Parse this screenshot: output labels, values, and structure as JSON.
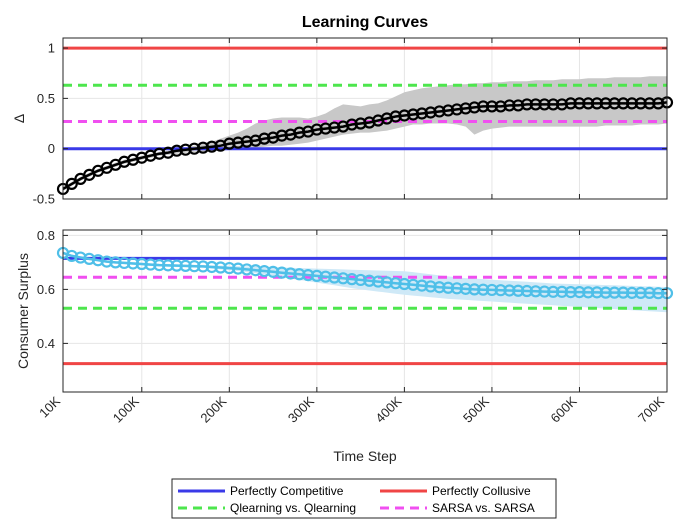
{
  "chart_data": {
    "type": "line",
    "title": "Learning Curves",
    "xlabel": "Time Step",
    "x_ticks": [
      "10K",
      "100K",
      "200K",
      "300K",
      "400K",
      "500K",
      "600K",
      "700K"
    ],
    "x_tick_values": [
      10000,
      100000,
      200000,
      300000,
      400000,
      500000,
      600000,
      700000
    ],
    "xlim": [
      10000,
      700000
    ],
    "grid": true,
    "panels": [
      {
        "ylabel": "Δ",
        "ylim": [
          -0.5,
          1.1
        ],
        "y_ticks": [
          -0.5,
          0,
          0.5,
          1
        ],
        "y_tick_labels": [
          "-0.5",
          "0",
          "0.5",
          "1"
        ],
        "reference_lines": [
          {
            "name": "Perfectly Competitive",
            "value": 0,
            "color": "#3a3ae8",
            "style": "solid"
          },
          {
            "name": "Perfectly Collusive",
            "value": 1,
            "color": "#f04545",
            "style": "solid"
          },
          {
            "name": "Qlearning vs. Qlearning",
            "value": 0.63,
            "color": "#4de64d",
            "style": "dashed"
          },
          {
            "name": "SARSA vs. SARSA",
            "value": 0.27,
            "color": "#f04ff0",
            "style": "dashed"
          }
        ],
        "series": {
          "marker_color": "#000000",
          "band_color": "#c8c8c8",
          "x": [
            10000,
            20000,
            30000,
            40000,
            50000,
            60000,
            70000,
            80000,
            90000,
            100000,
            110000,
            120000,
            130000,
            140000,
            150000,
            160000,
            170000,
            180000,
            190000,
            200000,
            210000,
            220000,
            230000,
            240000,
            250000,
            260000,
            270000,
            280000,
            290000,
            300000,
            310000,
            320000,
            330000,
            340000,
            350000,
            360000,
            370000,
            380000,
            390000,
            400000,
            410000,
            420000,
            430000,
            440000,
            450000,
            460000,
            470000,
            480000,
            490000,
            500000,
            510000,
            520000,
            530000,
            540000,
            550000,
            560000,
            570000,
            580000,
            590000,
            600000,
            610000,
            620000,
            630000,
            640000,
            650000,
            660000,
            670000,
            680000,
            690000,
            700000
          ],
          "values": [
            -0.4,
            -0.35,
            -0.3,
            -0.26,
            -0.22,
            -0.19,
            -0.16,
            -0.13,
            -0.11,
            -0.09,
            -0.07,
            -0.05,
            -0.04,
            -0.02,
            -0.01,
            0.0,
            0.01,
            0.02,
            0.03,
            0.05,
            0.06,
            0.07,
            0.08,
            0.1,
            0.11,
            0.13,
            0.14,
            0.16,
            0.17,
            0.19,
            0.2,
            0.21,
            0.22,
            0.24,
            0.25,
            0.26,
            0.28,
            0.3,
            0.32,
            0.33,
            0.34,
            0.35,
            0.36,
            0.37,
            0.38,
            0.39,
            0.4,
            0.41,
            0.42,
            0.42,
            0.42,
            0.43,
            0.43,
            0.44,
            0.44,
            0.44,
            0.44,
            0.44,
            0.45,
            0.45,
            0.45,
            0.45,
            0.45,
            0.45,
            0.45,
            0.45,
            0.45,
            0.45,
            0.45,
            0.46
          ],
          "upper": [
            -0.38,
            -0.33,
            -0.28,
            -0.24,
            -0.2,
            -0.17,
            -0.14,
            -0.11,
            -0.09,
            -0.07,
            -0.05,
            -0.03,
            -0.02,
            0.0,
            0.01,
            0.03,
            0.05,
            0.07,
            0.1,
            0.13,
            0.16,
            0.2,
            0.25,
            0.28,
            0.3,
            0.31,
            0.31,
            0.31,
            0.3,
            0.32,
            0.35,
            0.4,
            0.44,
            0.43,
            0.42,
            0.44,
            0.45,
            0.48,
            0.52,
            0.56,
            0.58,
            0.6,
            0.61,
            0.62,
            0.63,
            0.64,
            0.64,
            0.65,
            0.65,
            0.66,
            0.66,
            0.67,
            0.67,
            0.67,
            0.68,
            0.68,
            0.68,
            0.69,
            0.69,
            0.69,
            0.7,
            0.7,
            0.7,
            0.71,
            0.71,
            0.71,
            0.71,
            0.72,
            0.72,
            0.72
          ],
          "lower": [
            -0.42,
            -0.37,
            -0.32,
            -0.28,
            -0.24,
            -0.21,
            -0.18,
            -0.15,
            -0.13,
            -0.11,
            -0.09,
            -0.07,
            -0.06,
            -0.05,
            -0.04,
            -0.03,
            -0.03,
            -0.02,
            -0.02,
            -0.01,
            0.0,
            0.0,
            0.01,
            0.02,
            0.03,
            0.03,
            0.04,
            0.05,
            0.06,
            0.08,
            0.1,
            0.12,
            0.14,
            0.15,
            0.16,
            0.16,
            0.17,
            0.18,
            0.2,
            0.22,
            0.24,
            0.24,
            0.25,
            0.25,
            0.25,
            0.24,
            0.22,
            0.14,
            0.18,
            0.2,
            0.21,
            0.22,
            0.22,
            0.22,
            0.22,
            0.22,
            0.22,
            0.22,
            0.22,
            0.22,
            0.22,
            0.22,
            0.23,
            0.23,
            0.23,
            0.23,
            0.24,
            0.24,
            0.24,
            0.25
          ]
        }
      },
      {
        "ylabel": "Consumer Surplus",
        "ylim": [
          0.22,
          0.82
        ],
        "y_ticks": [
          0.4,
          0.6,
          0.8
        ],
        "y_tick_labels": [
          "0.4",
          "0.6",
          "0.8"
        ],
        "reference_lines": [
          {
            "name": "Perfectly Competitive",
            "value": 0.715,
            "color": "#3a3ae8",
            "style": "solid"
          },
          {
            "name": "Perfectly Collusive",
            "value": 0.325,
            "color": "#f04545",
            "style": "solid"
          },
          {
            "name": "Qlearning vs. Qlearning",
            "value": 0.53,
            "color": "#4de64d",
            "style": "dashed"
          },
          {
            "name": "SARSA vs. SARSA",
            "value": 0.645,
            "color": "#f04ff0",
            "style": "dashed"
          }
        ],
        "series": {
          "marker_color": "#4fbfe8",
          "band_color": "#cfe9f7",
          "x": [
            10000,
            20000,
            30000,
            40000,
            50000,
            60000,
            70000,
            80000,
            90000,
            100000,
            110000,
            120000,
            130000,
            140000,
            150000,
            160000,
            170000,
            180000,
            190000,
            200000,
            210000,
            220000,
            230000,
            240000,
            250000,
            260000,
            270000,
            280000,
            290000,
            300000,
            310000,
            320000,
            330000,
            340000,
            350000,
            360000,
            370000,
            380000,
            390000,
            400000,
            410000,
            420000,
            430000,
            440000,
            450000,
            460000,
            470000,
            480000,
            490000,
            500000,
            510000,
            520000,
            530000,
            540000,
            550000,
            560000,
            570000,
            580000,
            590000,
            600000,
            610000,
            620000,
            630000,
            640000,
            650000,
            660000,
            670000,
            680000,
            690000,
            700000
          ],
          "values": [
            0.735,
            0.724,
            0.718,
            0.713,
            0.708,
            0.703,
            0.7,
            0.698,
            0.696,
            0.694,
            0.692,
            0.69,
            0.689,
            0.688,
            0.687,
            0.686,
            0.685,
            0.683,
            0.681,
            0.679,
            0.677,
            0.674,
            0.671,
            0.668,
            0.665,
            0.662,
            0.659,
            0.656,
            0.653,
            0.65,
            0.647,
            0.644,
            0.641,
            0.638,
            0.635,
            0.632,
            0.629,
            0.626,
            0.623,
            0.62,
            0.617,
            0.614,
            0.611,
            0.608,
            0.606,
            0.604,
            0.602,
            0.6,
            0.599,
            0.598,
            0.597,
            0.596,
            0.595,
            0.594,
            0.593,
            0.592,
            0.591,
            0.591,
            0.59,
            0.59,
            0.589,
            0.589,
            0.588,
            0.588,
            0.588,
            0.587,
            0.587,
            0.587,
            0.586,
            0.586
          ],
          "upper": [
            0.74,
            0.729,
            0.723,
            0.718,
            0.713,
            0.708,
            0.705,
            0.703,
            0.701,
            0.699,
            0.697,
            0.695,
            0.694,
            0.693,
            0.692,
            0.691,
            0.69,
            0.689,
            0.688,
            0.687,
            0.686,
            0.685,
            0.684,
            0.683,
            0.682,
            0.681,
            0.68,
            0.679,
            0.678,
            0.677,
            0.676,
            0.675,
            0.674,
            0.673,
            0.672,
            0.671,
            0.67,
            0.669,
            0.668,
            0.667,
            0.664,
            0.66,
            0.656,
            0.652,
            0.648,
            0.645,
            0.642,
            0.64,
            0.638,
            0.636,
            0.634,
            0.632,
            0.63,
            0.628,
            0.626,
            0.624,
            0.622,
            0.621,
            0.62,
            0.619,
            0.618,
            0.617,
            0.616,
            0.615,
            0.614,
            0.613,
            0.612,
            0.611,
            0.61,
            0.609
          ],
          "lower": [
            0.73,
            0.719,
            0.713,
            0.708,
            0.703,
            0.698,
            0.695,
            0.693,
            0.691,
            0.689,
            0.687,
            0.685,
            0.684,
            0.683,
            0.682,
            0.681,
            0.68,
            0.677,
            0.674,
            0.671,
            0.668,
            0.664,
            0.66,
            0.655,
            0.65,
            0.645,
            0.64,
            0.635,
            0.63,
            0.625,
            0.62,
            0.615,
            0.61,
            0.605,
            0.6,
            0.596,
            0.592,
            0.588,
            0.584,
            0.58,
            0.577,
            0.574,
            0.571,
            0.568,
            0.565,
            0.563,
            0.561,
            0.559,
            0.557,
            0.555,
            0.553,
            0.551,
            0.549,
            0.547,
            0.545,
            0.543,
            0.541,
            0.539,
            0.537,
            0.535,
            0.533,
            0.531,
            0.529,
            0.527,
            0.525,
            0.523,
            0.521,
            0.519,
            0.517,
            0.515
          ]
        }
      }
    ],
    "legend": {
      "placement": "bottom",
      "entries": [
        {
          "label": "Perfectly Competitive",
          "color": "#3a3ae8",
          "style": "solid"
        },
        {
          "label": "Perfectly Collusive",
          "color": "#f04545",
          "style": "solid"
        },
        {
          "label": "Qlearning vs. Qlearning",
          "color": "#4de64d",
          "style": "dashed"
        },
        {
          "label": "SARSA vs. SARSA",
          "color": "#f04ff0",
          "style": "dashed"
        }
      ]
    }
  }
}
